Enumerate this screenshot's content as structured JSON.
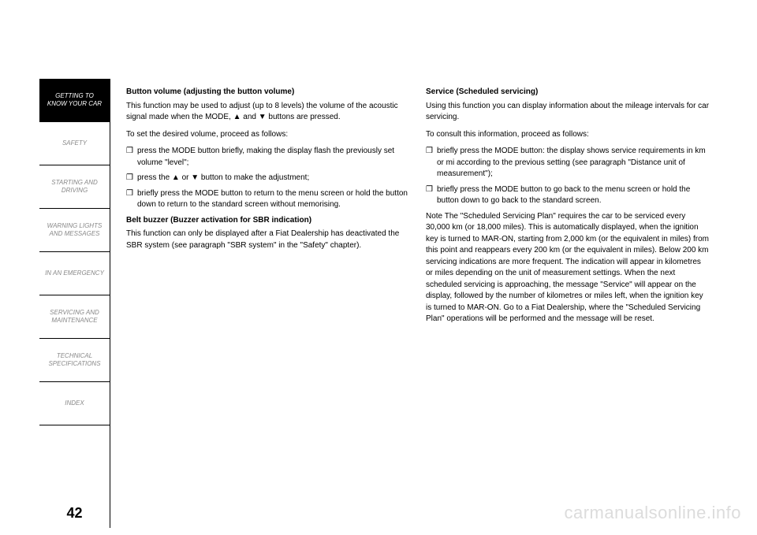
{
  "sidebar": {
    "items": [
      {
        "label": "GETTING TO\nKNOW YOUR CAR",
        "active": true
      },
      {
        "label": "SAFETY",
        "active": false
      },
      {
        "label": "STARTING AND\nDRIVING",
        "active": false
      },
      {
        "label": "WARNING LIGHTS\nAND MESSAGES",
        "active": false
      },
      {
        "label": "IN AN EMERGENCY",
        "active": false
      },
      {
        "label": "SERVICING AND\nMAINTENANCE",
        "active": false
      },
      {
        "label": "TECHNICAL\nSPECIFICATIONS",
        "active": false
      },
      {
        "label": "INDEX",
        "active": false
      }
    ],
    "page_number": "42"
  },
  "col1": {
    "h1": "Button volume (adjusting the button volume)",
    "p1": "This function may be used to adjust (up to 8 levels) the volume of the acoustic signal made when the MODE, ▲ and ▼ buttons are pressed.",
    "p2": "To set the desired volume, proceed as follows:",
    "b1": "press the MODE button briefly, making the display flash the previously set volume \"level\";",
    "b2": "press the ▲ or ▼ button to make the adjustment;",
    "b3": "briefly press the MODE button to return to the menu screen or hold the button down to return to the standard screen without memorising.",
    "h2": "Belt buzzer (Buzzer activation for SBR indication)",
    "p3": "This function can only be displayed after a Fiat Dealership has deactivated the SBR system (see paragraph \"SBR system\" in the \"Safety\" chapter)."
  },
  "col2": {
    "h1": "Service (Scheduled servicing)",
    "p1": "Using this function you can display information about the mileage intervals for car servicing.",
    "p2": "To consult this information, proceed as follows:",
    "b1": "briefly press the MODE button: the display shows service requirements in km or mi according to the previous setting (see paragraph \"Distance unit of measurement\");",
    "b2": "briefly press the MODE button to go back to the menu screen or hold the button down to go back to the standard screen.",
    "p3": "Note The \"Scheduled Servicing Plan\" requires the car to be serviced every 30,000 km (or 18,000 miles). This is automatically displayed, when the ignition key is turned to MAR-ON, starting from 2,000 km (or the equivalent in miles) from this point and reappears every 200 km (or the equivalent in miles). Below 200 km servicing indications are more frequent. The indication will appear in kilometres or miles depending on the unit of measurement settings. When the next scheduled servicing is approaching, the message \"Service\" will appear on the display, followed by the number of kilometres or miles left, when the ignition key is turned to MAR-ON. Go to a Fiat Dealership, where the \"Scheduled Servicing Plan\" operations will be performed and the message will be reset."
  },
  "bullet_marker": "❒",
  "watermark": "carmanualsonline.info"
}
